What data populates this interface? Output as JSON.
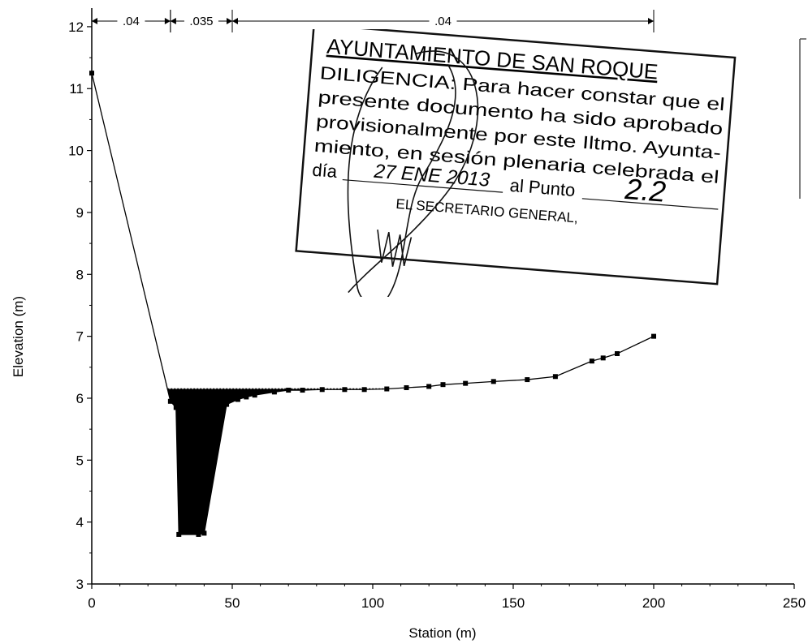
{
  "chart_data": {
    "type": "line",
    "title": "",
    "xlabel": "Station (m)",
    "ylabel": "Elevation (m)",
    "xlim": [
      0,
      250
    ],
    "ylim": [
      3,
      12.3
    ],
    "x_ticks": [
      0,
      50,
      100,
      150,
      200,
      250
    ],
    "y_ticks": [
      3,
      4,
      5,
      6,
      7,
      8,
      9,
      10,
      11,
      12
    ],
    "grid": false,
    "legend": "none",
    "water_surface": 6.15,
    "manning_n": [
      {
        "label": ".04",
        "from": 0,
        "to": 28
      },
      {
        "label": ".035",
        "from": 28,
        "to": 50
      },
      {
        "label": ".04",
        "from": 50,
        "to": 200
      }
    ],
    "series": [
      {
        "name": "",
        "x": [
          0,
          28,
          30,
          31,
          38,
          40,
          48,
          52,
          55,
          58,
          65,
          70,
          75,
          82,
          90,
          97,
          105,
          112,
          120,
          125,
          133,
          143,
          155,
          165,
          178,
          182,
          187,
          200
        ],
        "y": [
          11.25,
          5.95,
          5.85,
          3.8,
          3.8,
          3.82,
          5.9,
          5.98,
          6.02,
          6.05,
          6.1,
          6.13,
          6.13,
          6.14,
          6.14,
          6.14,
          6.15,
          6.17,
          6.19,
          6.22,
          6.24,
          6.27,
          6.3,
          6.35,
          6.6,
          6.65,
          6.72,
          7.0
        ]
      }
    ]
  },
  "stamp": {
    "line1": "AYUNTAMIENTO DE SAN ROQUE",
    "line2": "DILIGENCIA: Para hacer constar que el",
    "line3": "presente documento ha sido aprobado",
    "line4": "provisionalmente por este Iltmo. Ayunta-",
    "line5": "miento, en sesión plenaria celebrada el",
    "line6_a": "día",
    "line6_b": "al Punto",
    "line7": "EL SECRETARIO GENERAL,",
    "handwritten_date": "27 ENE 2013",
    "handwritten_point": "2.2"
  }
}
